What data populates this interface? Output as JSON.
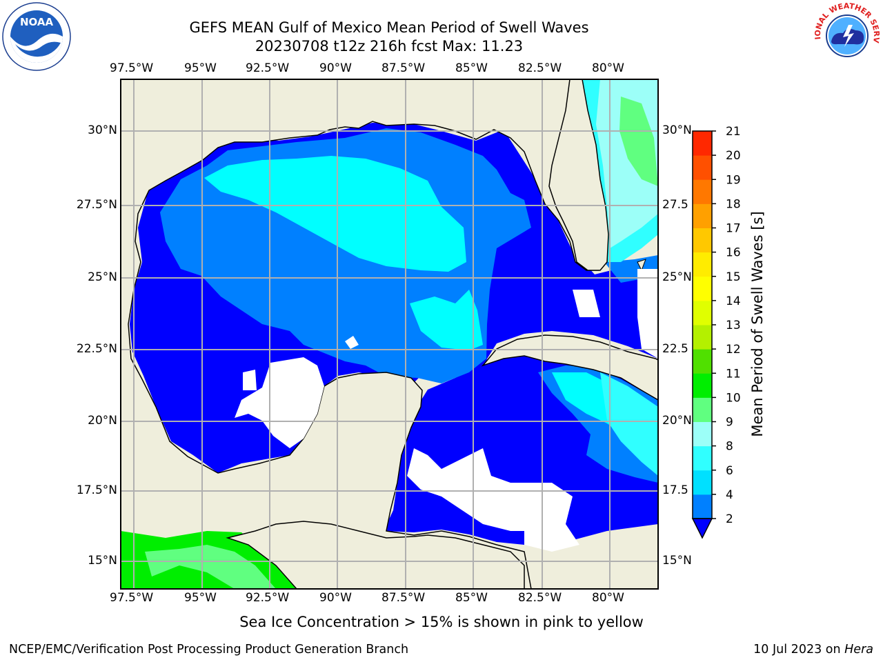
{
  "title_line1": "GEFS MEAN Gulf of Mexico Mean Period of Swell Waves",
  "title_line2": "20230708 t12z 216h fcst   Max: 11.23",
  "map": {
    "lon_labels_top": [
      "97.5°W",
      "95°W",
      "92.5°W",
      "90°W",
      "87.5°W",
      "85°W",
      "82.5°W",
      "80°W"
    ],
    "lon_labels_bottom": [
      "97.5°W",
      "95°W",
      "92.5°W",
      "90°W",
      "87.5°W",
      "85°W",
      "82.5°W",
      "80°W"
    ],
    "lat_labels_left": [
      "30°N",
      "27.5°N",
      "25°N",
      "22.5°N",
      "20°N",
      "17.5°N",
      "15°N"
    ],
    "lat_labels_right": [
      "30°N",
      "27.5",
      "25°N",
      "22.5",
      "20°N",
      "17.5",
      "15°N"
    ],
    "land_color": "#efeedc",
    "ocean_deep_color": "#0000ff",
    "grid_color": "#b0b0b0"
  },
  "colorbar": {
    "label": "Mean Period of Swell Waves [s]",
    "ticks": [
      "2",
      "4",
      "6",
      "8",
      "9",
      "10",
      "11",
      "12",
      "13",
      "14",
      "15",
      "16",
      "17",
      "18",
      "19",
      "20",
      "21"
    ],
    "colors": [
      "#0080ff",
      "#00e0ff",
      "#30ffff",
      "#9cfff8",
      "#60ff80",
      "#00ee00",
      "#50e000",
      "#b4f000",
      "#e0ff00",
      "#ffff00",
      "#ffec00",
      "#ffc800",
      "#ffa000",
      "#ff7800",
      "#ff5000",
      "#ff2800",
      "#ff0000"
    ],
    "under_color": "#0000ff"
  },
  "footer": {
    "note": "Sea Ice Concentration > 15% is shown in pink to yellow",
    "left": "NCEP/EMC/Verification Post Processing Product Generation Branch",
    "right_date": "10 Jul 2023 on ",
    "right_host": "Hera"
  },
  "logos": {
    "noaa_text": "NOAA",
    "nws_text": "NATIONAL WEATHER SERVICE"
  }
}
